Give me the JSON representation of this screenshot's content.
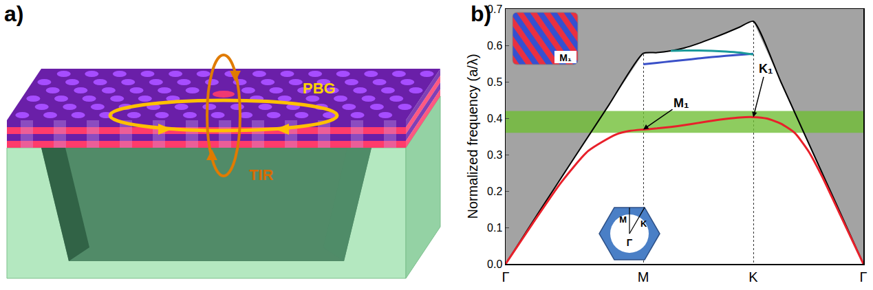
{
  "diagram": {
    "label": "a)",
    "arrow_labels": {
      "in_plane": "PBG",
      "vertical": "TIR"
    }
  },
  "chart_data": {
    "label": "b)",
    "type": "line",
    "y_label": "Normalized frequency (a/λ)",
    "xlim": [
      0,
      2.6
    ],
    "xticks": [
      {
        "value": 0,
        "label": "Γ"
      },
      {
        "value": 1,
        "label": "M"
      },
      {
        "value": 1.8,
        "label": "K"
      },
      {
        "value": 2.6,
        "label": "Γ"
      }
    ],
    "ylim": [
      0,
      0.7
    ],
    "yticks": [
      {
        "value": 0,
        "label": "0.0"
      },
      {
        "value": 0.1,
        "label": "0.1"
      },
      {
        "value": 0.2,
        "label": "0.2"
      },
      {
        "value": 0.3,
        "label": "0.3"
      },
      {
        "value": 0.4,
        "label": "0.4"
      },
      {
        "value": 0.5,
        "label": "0.5"
      },
      {
        "value": 0.6,
        "label": "0.6"
      },
      {
        "value": 0.7,
        "label": "0.7"
      }
    ],
    "grid": "x",
    "band_gap": [
      0.36,
      0.42
    ],
    "series": [
      {
        "type": "area",
        "color": "#000000",
        "x": [
          0,
          0.25,
          0.5,
          0.75,
          1.0,
          1.1,
          1.2,
          1.3,
          1.4,
          1.5,
          1.6,
          1.7,
          1.8,
          2.0,
          2.2,
          2.4,
          2.6
        ],
        "values": [
          0,
          0.147,
          0.292,
          0.436,
          0.578,
          0.58,
          0.585,
          0.593,
          0.605,
          0.619,
          0.634,
          0.65,
          0.666,
          0.5,
          0.333,
          0.167,
          0
        ]
      },
      {
        "type": "line",
        "color": "#e8202a",
        "x": [
          0,
          0.2,
          0.4,
          0.6,
          0.8,
          0.9,
          1.0,
          1.1,
          1.2,
          1.3,
          1.4,
          1.5,
          1.6,
          1.7,
          1.8,
          1.9,
          2.0,
          2.1,
          2.2,
          2.3,
          2.4,
          2.5,
          2.6
        ],
        "values": [
          0,
          0.113,
          0.222,
          0.31,
          0.355,
          0.365,
          0.369,
          0.372,
          0.376,
          0.381,
          0.387,
          0.393,
          0.398,
          0.402,
          0.403,
          0.399,
          0.385,
          0.36,
          0.31,
          0.24,
          0.16,
          0.08,
          0
        ]
      },
      {
        "type": "line",
        "color": "#3a50c8",
        "x": [
          1.0,
          1.1,
          1.2,
          1.3,
          1.4,
          1.5,
          1.6,
          1.7,
          1.8
        ],
        "values": [
          0.548,
          0.552,
          0.556,
          0.56,
          0.564,
          0.568,
          0.571,
          0.574,
          0.577
        ]
      },
      {
        "type": "line",
        "color": "#1a9a9a",
        "x": [
          1.2,
          1.3,
          1.4,
          1.5,
          1.6,
          1.7,
          1.8
        ],
        "values": [
          0.585,
          0.586,
          0.586,
          0.585,
          0.583,
          0.58,
          0.575
        ]
      }
    ],
    "annotations": [
      {
        "text": "M₁",
        "x": 1.0,
        "y": 0.369
      },
      {
        "text": "K₁",
        "x": 1.8,
        "y": 0.403
      }
    ],
    "inset_labels": {
      "field_map": "M₁",
      "zone": {
        "M": "M",
        "K": "K",
        "center": "Γ"
      }
    }
  }
}
